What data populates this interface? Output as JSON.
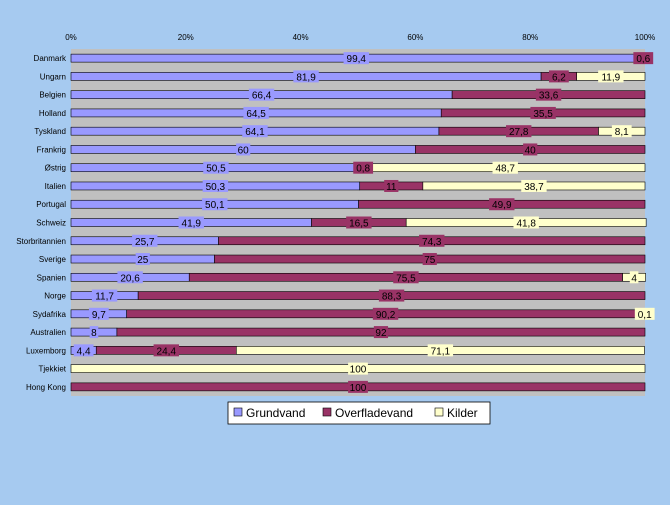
{
  "chart_data": {
    "type": "bar",
    "orientation": "horizontal",
    "stacked": "percent",
    "title": "",
    "xlabel": "",
    "ylabel": "",
    "xlim": [
      0,
      100
    ],
    "x_ticks": [
      "0%",
      "20%",
      "40%",
      "60%",
      "80%",
      "100%"
    ],
    "grid": false,
    "legend_position": "bottom",
    "categories": [
      "Danmark",
      "Ungarn",
      "Belgien",
      "Holland",
      "Tyskland",
      "Frankrig",
      "Østrig",
      "Italien",
      "Portugal",
      "Schweiz",
      "Storbritannien",
      "Sverige",
      "Spanien",
      "Norge",
      "Sydafrika",
      "Australien",
      "Luxemborg",
      "Tjekkiet",
      "Hong Kong"
    ],
    "series": [
      {
        "name": "Grundvand",
        "color": "#9999ff",
        "values": [
          99.4,
          81.9,
          66.4,
          64.5,
          64.1,
          60,
          50.5,
          50.3,
          50.1,
          41.9,
          25.7,
          25,
          20.6,
          11.7,
          9.7,
          8,
          4.4,
          0,
          0
        ],
        "labels": [
          "99,4",
          "81,9",
          "66,4",
          "64,5",
          "64,1",
          "60",
          "50,5",
          "50,3",
          "50,1",
          "41,9",
          "25,7",
          "25",
          "20,6",
          "11,7",
          "9,7",
          "8",
          "4,4",
          "",
          ""
        ]
      },
      {
        "name": "Overfladevand",
        "color": "#993366",
        "values": [
          0.6,
          6.2,
          33.6,
          35.5,
          27.8,
          40,
          0.8,
          11,
          49.9,
          16.5,
          74.3,
          75,
          75.5,
          88.3,
          90.2,
          92,
          24.4,
          0,
          100
        ],
        "labels": [
          "0,6",
          "6,2",
          "33,6",
          "35,5",
          "27,8",
          "40",
          "0,8",
          "11",
          "49,9",
          "16,5",
          "74,3",
          "75",
          "75,5",
          "88,3",
          "90,2",
          "92",
          "24,4",
          "",
          "100"
        ]
      },
      {
        "name": "Kilder",
        "color": "#ffffcc",
        "values": [
          0,
          11.9,
          0,
          0,
          8.1,
          0,
          48.7,
          38.7,
          0,
          41.8,
          0,
          0,
          4,
          0,
          0.1,
          0,
          71.1,
          100,
          0
        ],
        "labels": [
          "",
          "11,9",
          "",
          "",
          "8,1",
          "",
          "48,7",
          "38,7",
          "",
          "41,8",
          "",
          "",
          "4",
          "",
          "0,1",
          "",
          "71,1",
          "100",
          ""
        ]
      }
    ]
  }
}
